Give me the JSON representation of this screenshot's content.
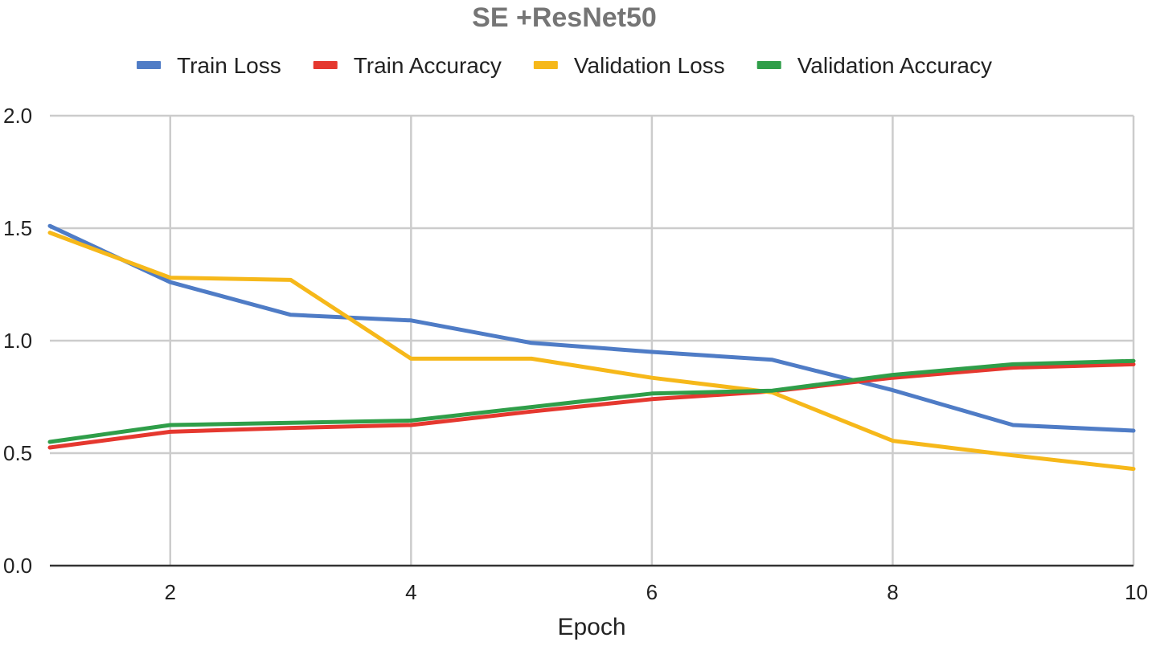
{
  "chart_data": {
    "type": "line",
    "title": "SE +ResNet50",
    "xlabel": "Epoch",
    "ylabel": "",
    "x": [
      1,
      2,
      3,
      4,
      5,
      6,
      7,
      8,
      9,
      10
    ],
    "xlim": [
      1,
      10
    ],
    "ylim": [
      0,
      2
    ],
    "xticks": [
      2,
      4,
      6,
      8,
      10
    ],
    "xtick_labels": [
      "2",
      "4",
      "6",
      "8",
      "10"
    ],
    "yticks": [
      0,
      0.5,
      1,
      1.5,
      2
    ],
    "ytick_labels": [
      "0.0",
      "0.5",
      "1.0",
      "1.5",
      "2.0"
    ],
    "grid": true,
    "legend_position": "top",
    "series": [
      {
        "name": "Train Loss",
        "color": "#4f7cc6",
        "values": [
          1.51,
          1.26,
          1.115,
          1.09,
          0.99,
          0.95,
          0.915,
          0.78,
          0.625,
          0.6
        ]
      },
      {
        "name": "Train Accuracy",
        "color": "#e5382f",
        "values": [
          0.525,
          0.595,
          0.612,
          0.625,
          0.685,
          0.74,
          0.775,
          0.835,
          0.88,
          0.895
        ]
      },
      {
        "name": "Validation Loss",
        "color": "#f6b81a",
        "values": [
          1.48,
          1.28,
          1.27,
          0.92,
          0.92,
          0.835,
          0.77,
          0.555,
          0.49,
          0.43
        ]
      },
      {
        "name": "Validation Accuracy",
        "color": "#2f9e49",
        "values": [
          0.55,
          0.625,
          0.635,
          0.645,
          0.705,
          0.765,
          0.778,
          0.848,
          0.895,
          0.91
        ]
      }
    ]
  }
}
